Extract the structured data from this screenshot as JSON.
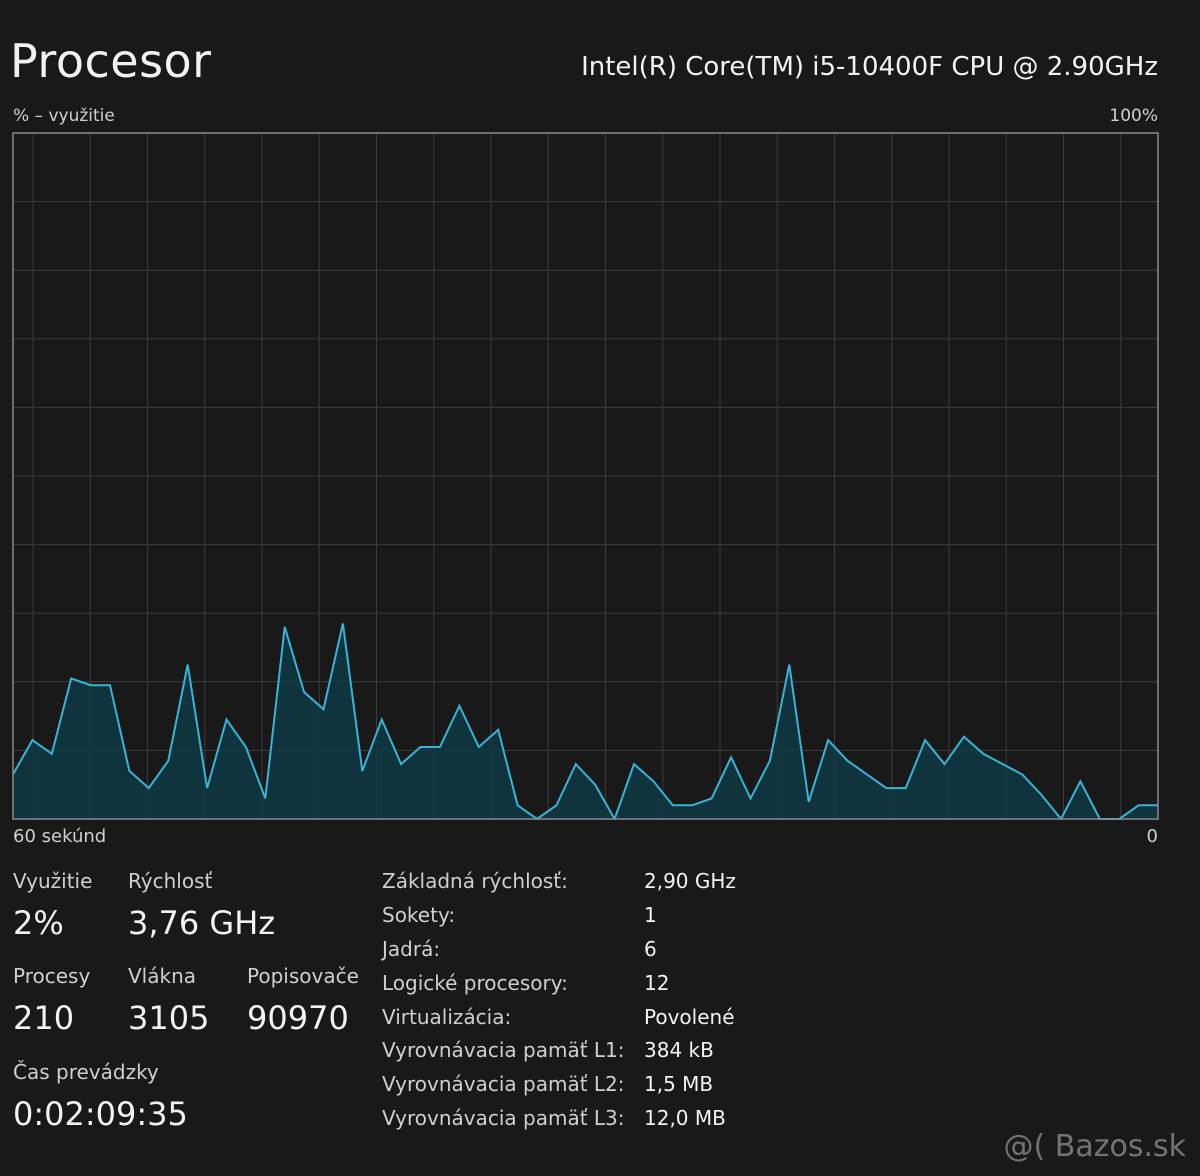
{
  "header": {
    "title": "Procesor",
    "cpu_name": "Intel(R) Core(TM) i5-10400F CPU @ 2.90GHz"
  },
  "chart_data": {
    "type": "area",
    "ylabel": "% – využitie",
    "xlabel": "60 sekúnd",
    "y_max_label": "100%",
    "y_min_label": "0",
    "ylim": [
      0,
      100
    ],
    "grid": true,
    "line_color": "#3ab4d6",
    "fill_color": "#0f3a45",
    "values": [
      6.5,
      11.5,
      9.5,
      20.5,
      19.5,
      19.5,
      7,
      4.5,
      8.5,
      22.5,
      4.5,
      14.5,
      10.5,
      3,
      28,
      18.5,
      16,
      28.5,
      7,
      14.5,
      8,
      10.5,
      10.5,
      16.5,
      10.5,
      13,
      2,
      0,
      2,
      8,
      5,
      0,
      8,
      5.5,
      2,
      2,
      3,
      9,
      3,
      8.5,
      22.5,
      2.5,
      11.5,
      8.5,
      6.5,
      4.5,
      4.5,
      11.5,
      8,
      12,
      9.5,
      8,
      6.5,
      3.5,
      0,
      5.5,
      0,
      0,
      2,
      2
    ]
  },
  "stats": {
    "utilization": {
      "label": "Využitie",
      "value": "2%"
    },
    "speed": {
      "label": "Rýchlosť",
      "value": "3,76 GHz"
    },
    "processes": {
      "label": "Procesy",
      "value": "210"
    },
    "threads": {
      "label": "Vlákna",
      "value": "3105"
    },
    "handles": {
      "label": "Popisovače",
      "value": "90970"
    },
    "uptime": {
      "label": "Čas prevádzky",
      "value": "0:02:09:35"
    }
  },
  "details": [
    {
      "label": "Základná rýchlosť:",
      "value": "2,90 GHz"
    },
    {
      "label": "Sokety:",
      "value": "1"
    },
    {
      "label": "Jadrá:",
      "value": "6"
    },
    {
      "label": "Logické procesory:",
      "value": "12"
    },
    {
      "label": "Virtualizácia:",
      "value": "Povolené"
    },
    {
      "label": "Vyrovnávacia pamäť L1:",
      "value": "384 kB"
    },
    {
      "label": "Vyrovnávacia pamäť L2:",
      "value": "1,5 MB"
    },
    {
      "label": "Vyrovnávacia pamäť L3:",
      "value": "12,0 MB"
    }
  ],
  "watermark": "@( Bazos.sk"
}
